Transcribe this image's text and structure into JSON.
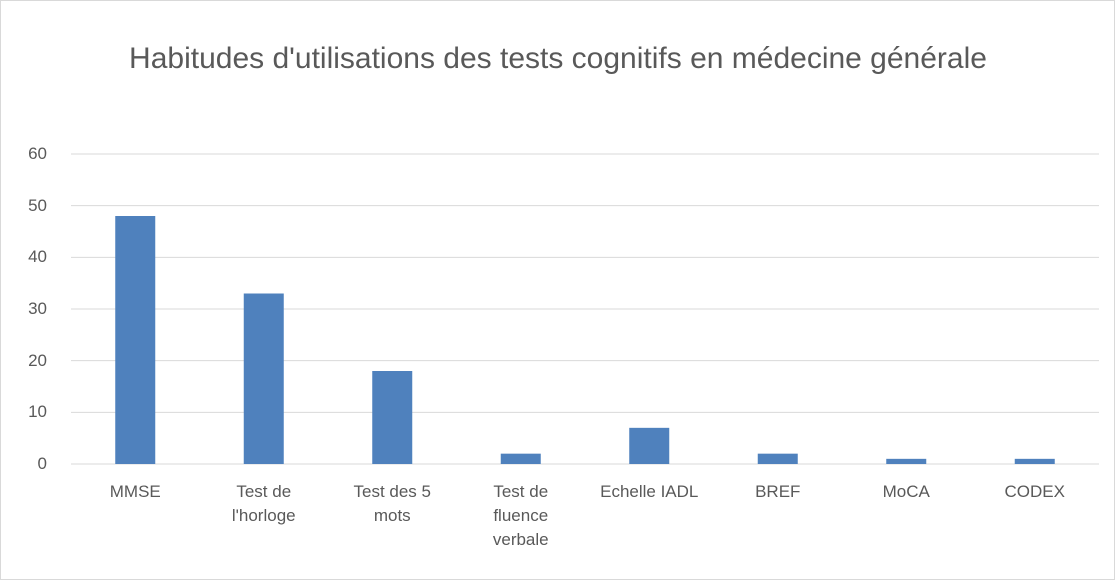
{
  "chart_data": {
    "type": "bar",
    "title": "Habitudes d'utilisations des tests cognitifs en médecine générale",
    "categories": [
      "MMSE",
      "Test de l'horloge",
      "Test des 5 mots",
      "Test de fluence verbale",
      "Echelle IADL",
      "BREF",
      "MoCA",
      "CODEX"
    ],
    "values": [
      48,
      33,
      18,
      2,
      7,
      2,
      1,
      1
    ],
    "color": "#4f81bd",
    "ylim": [
      0,
      60
    ],
    "yticks": [
      0,
      10,
      20,
      30,
      40,
      50,
      60
    ],
    "grid": true
  }
}
